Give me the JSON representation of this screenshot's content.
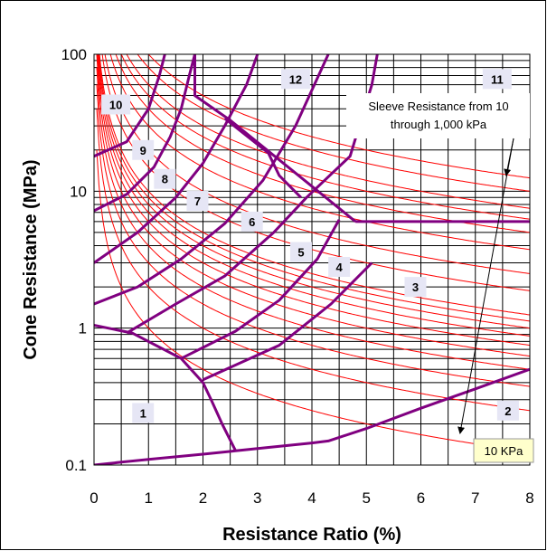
{
  "chart_data": {
    "type": "line",
    "title": "",
    "xlabel": "Resistance Ratio  (%)",
    "ylabel": "Cone Resistance  (MPa)",
    "xlim": [
      0,
      8
    ],
    "ylim": [
      0.1,
      100
    ],
    "yscale": "log",
    "grid": true,
    "x_ticks": [
      "0",
      "1",
      "2",
      "3",
      "4",
      "5",
      "6",
      "7",
      "8"
    ],
    "y_ticks": [
      {
        "value": 0.1,
        "label": "0.1"
      },
      {
        "value": 1,
        "label": "1"
      },
      {
        "value": 10,
        "label": "10"
      },
      {
        "value": 100,
        "label": "100"
      }
    ],
    "colors": {
      "boundary": "#800080",
      "sleeve_curve": "#ff0000",
      "zone_label_bg": "#e6e6f5",
      "callout_bg": "#ffffcc"
    },
    "sleeve_resistance_curves_kpa": [
      10,
      20,
      30,
      40,
      50,
      60,
      70,
      80,
      90,
      100,
      150,
      200,
      300,
      400,
      500,
      600,
      800,
      1000
    ],
    "zone_boundaries": [
      {
        "points": [
          [
            0,
            0.1
          ],
          [
            0.5,
            0.105
          ],
          [
            1,
            0.11
          ],
          [
            2,
            0.12
          ],
          [
            2.6,
            0.127
          ],
          [
            3,
            0.132
          ],
          [
            4,
            0.145
          ],
          [
            4.3,
            0.15
          ],
          [
            5,
            0.185
          ],
          [
            6,
            0.26
          ],
          [
            7,
            0.36
          ],
          [
            8,
            0.5
          ]
        ]
      },
      {
        "points": [
          [
            2.6,
            0.127
          ],
          [
            2.35,
            0.2
          ],
          [
            2.15,
            0.3
          ],
          [
            2,
            0.4
          ],
          [
            1.6,
            0.6
          ],
          [
            0.7,
            0.92
          ],
          [
            0,
            1.05
          ]
        ]
      },
      {
        "points": [
          [
            2,
            0.42
          ],
          [
            3.4,
            0.75
          ],
          [
            4.35,
            1.5
          ],
          [
            5.1,
            3.0
          ]
        ]
      },
      {
        "points": [
          [
            1.6,
            0.6
          ],
          [
            2.6,
            0.95
          ],
          [
            3.4,
            1.6
          ],
          [
            4.1,
            3.2
          ],
          [
            4.5,
            6.2
          ]
        ]
      },
      {
        "points": [
          [
            0.6,
            0.92
          ],
          [
            1.5,
            1.5
          ],
          [
            2.4,
            2.4
          ],
          [
            3.3,
            5.0
          ],
          [
            3.9,
            9.0
          ],
          [
            4.7,
            18
          ],
          [
            5.1,
            60
          ],
          [
            5.2,
            100
          ]
        ]
      },
      {
        "points": [
          [
            0,
            1.5
          ],
          [
            0.8,
            2.0
          ],
          [
            1.6,
            3.2
          ],
          [
            2.4,
            5.8
          ],
          [
            3.1,
            12
          ],
          [
            3.7,
            30
          ],
          [
            4.3,
            100
          ]
        ]
      },
      {
        "points": [
          [
            0,
            3.0
          ],
          [
            0.8,
            5.0
          ],
          [
            1.5,
            9.0
          ],
          [
            2.0,
            16
          ],
          [
            2.4,
            30
          ],
          [
            2.8,
            60
          ],
          [
            3.0,
            100
          ]
        ]
      },
      {
        "points": [
          [
            0,
            7.2
          ],
          [
            0.6,
            9.5
          ],
          [
            1.1,
            15
          ],
          [
            1.4,
            25
          ],
          [
            1.6,
            40
          ],
          [
            1.75,
            70
          ],
          [
            1.85,
            100
          ]
        ]
      },
      {
        "points": [
          [
            0,
            18
          ],
          [
            0.6,
            23
          ],
          [
            1.0,
            40
          ],
          [
            1.2,
            70
          ],
          [
            1.3,
            100
          ]
        ]
      },
      {
        "points": [
          [
            1.85,
            100
          ],
          [
            1.85,
            50
          ],
          [
            2.5,
            33
          ],
          [
            4.8,
            6.0
          ]
        ]
      },
      {
        "points": [
          [
            2.4,
            34
          ],
          [
            3.2,
            19
          ],
          [
            3.4,
            13
          ],
          [
            3.8,
            9
          ]
        ]
      },
      {
        "points": [
          [
            4.8,
            6.0
          ],
          [
            8,
            6.0
          ]
        ]
      }
    ],
    "zone_labels": [
      {
        "label": "1",
        "x": 0.9,
        "y": 0.24
      },
      {
        "label": "2",
        "x": 7.6,
        "y": 0.25
      },
      {
        "label": "3",
        "x": 5.9,
        "y": 2.0
      },
      {
        "label": "4",
        "x": 4.5,
        "y": 2.8
      },
      {
        "label": "5",
        "x": 3.8,
        "y": 3.6
      },
      {
        "label": "6",
        "x": 2.9,
        "y": 6.0
      },
      {
        "label": "7",
        "x": 1.9,
        "y": 8.5
      },
      {
        "label": "8",
        "x": 1.3,
        "y": 12.3
      },
      {
        "label": "9",
        "x": 0.9,
        "y": 20
      },
      {
        "label": "10",
        "x": 0.4,
        "y": 43
      },
      {
        "label": "11",
        "x": 7.4,
        "y": 66
      },
      {
        "label": "12",
        "x": 3.7,
        "y": 66
      }
    ],
    "annotations": {
      "sleeve_range_lines": [
        "Sleeve Resistance from 10",
        "through 1,000 kPa"
      ],
      "min_curve_label": "10 KPa"
    }
  }
}
